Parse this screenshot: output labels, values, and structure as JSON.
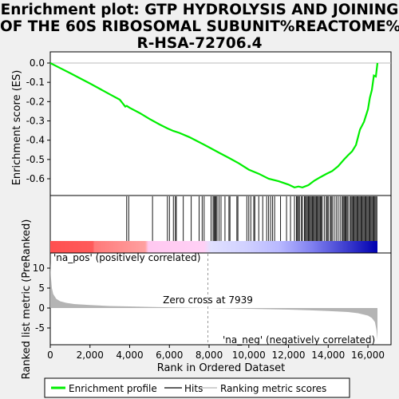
{
  "title": {
    "line1": "Enrichment plot: GTP HYDROLYSIS AND JOINING",
    "line2": "OF THE 60S RIBOSOMAL SUBUNIT%REACTOME%",
    "line3": "R-HSA-72706.4"
  },
  "colors": {
    "curve": "#00ee00",
    "hits": "#000000",
    "metric_fill": "#b4b4b4",
    "pos_label": "#ff0000",
    "neg_label": "#0000cd"
  },
  "chart_data": [
    {
      "type": "line",
      "name": "enrichment-score-panel",
      "ylabel": "Enrichment score (ES)",
      "ylim": [
        -0.69,
        0.04
      ],
      "xlim": [
        0,
        17000
      ],
      "yticks": [
        "0.0",
        "-0.1",
        "-0.2",
        "-0.3",
        "-0.4",
        "-0.5",
        "-0.6"
      ],
      "ytick_values": [
        0.0,
        -0.1,
        -0.2,
        -0.3,
        -0.4,
        -0.5,
        -0.6
      ],
      "grid": false,
      "x": [
        0,
        500,
        1000,
        1500,
        2000,
        2500,
        3000,
        3500,
        3780,
        3850,
        4000,
        4500,
        5000,
        5500,
        5900,
        6200,
        6500,
        7000,
        7500,
        8000,
        8500,
        9000,
        9500,
        10000,
        10500,
        11000,
        11500,
        12000,
        12300,
        12500,
        12700,
        13000,
        13300,
        13600,
        13900,
        14200,
        14500,
        14800,
        15000,
        15200,
        15400,
        15600,
        15800,
        16000,
        16100,
        16200,
        16300,
        16400,
        16480
      ],
      "y": [
        0.0,
        -0.026,
        -0.052,
        -0.079,
        -0.106,
        -0.134,
        -0.162,
        -0.19,
        -0.226,
        -0.222,
        -0.232,
        -0.259,
        -0.29,
        -0.318,
        -0.339,
        -0.352,
        -0.362,
        -0.384,
        -0.41,
        -0.437,
        -0.465,
        -0.492,
        -0.52,
        -0.553,
        -0.574,
        -0.6,
        -0.613,
        -0.63,
        -0.645,
        -0.64,
        -0.645,
        -0.633,
        -0.61,
        -0.592,
        -0.575,
        -0.56,
        -0.535,
        -0.5,
        -0.478,
        -0.458,
        -0.425,
        -0.345,
        -0.305,
        -0.24,
        -0.18,
        -0.14,
        -0.065,
        -0.07,
        0.0
      ]
    },
    {
      "type": "scatter",
      "name": "hits-panel",
      "xlim": [
        0,
        17000
      ],
      "x": [
        3850,
        3950,
        5150,
        5900,
        6000,
        6200,
        6300,
        6350,
        6700,
        7100,
        7500,
        7650,
        7750,
        8100,
        8200,
        8250,
        8300,
        8350,
        8400,
        8500,
        8600,
        8800,
        9000,
        9050,
        9400,
        9450,
        9900,
        10000,
        10100,
        10250,
        10300,
        10500,
        10700,
        10900,
        11000,
        11100,
        11200,
        11300,
        11600,
        11900,
        12100,
        12300,
        12400,
        12450,
        12500,
        12550,
        12650,
        12700,
        12800,
        12850,
        12900,
        12950,
        13000,
        13050,
        13100,
        13150,
        13200,
        13250,
        13300,
        13350,
        13400,
        13450,
        13500,
        13550,
        13600,
        13650,
        13700,
        13800,
        13900,
        13950,
        14000,
        14100,
        14150,
        14200,
        14300,
        14400,
        14500,
        14600,
        14700,
        14750,
        14800,
        14850,
        14900,
        14950,
        15000,
        15100,
        15150,
        15200,
        15250,
        15300,
        15350,
        15400,
        15450,
        15500,
        15550,
        15600,
        15650,
        15700,
        15750,
        15800,
        15850,
        15900,
        15950,
        16000,
        16050,
        16100,
        16150,
        16200,
        16250,
        16300,
        16350,
        16400,
        16450
      ]
    },
    {
      "type": "area",
      "name": "ranked-list-metric-panel",
      "ylabel": "Ranked list metric (PreRanked)",
      "xlabel": "Rank in Ordered Dataset",
      "ylim": [
        -9,
        12
      ],
      "xlim": [
        0,
        17000
      ],
      "yticks": [
        "10",
        "5",
        "0",
        "-5"
      ],
      "ytick_values": [
        10,
        5,
        0,
        -5
      ],
      "xticks": [
        "0",
        "2,000",
        "4,000",
        "6,000",
        "8,000",
        "10,000",
        "12,000",
        "14,000",
        "16,000"
      ],
      "xtick_values": [
        0,
        2000,
        4000,
        6000,
        8000,
        10000,
        12000,
        14000,
        16000
      ],
      "x": [
        0,
        30,
        80,
        150,
        300,
        500,
        800,
        1200,
        2000,
        3000,
        4000,
        5000,
        6000,
        7000,
        7939,
        9000,
        10000,
        11000,
        12000,
        13000,
        14000,
        15000,
        15500,
        16000,
        16200,
        16350,
        16430,
        16480
      ],
      "y": [
        11.5,
        8.0,
        5.0,
        3.5,
        2.3,
        1.7,
        1.3,
        1.0,
        0.75,
        0.5,
        0.4,
        0.28,
        0.18,
        0.08,
        0.0,
        -0.1,
        -0.2,
        -0.3,
        -0.4,
        -0.55,
        -0.75,
        -1.0,
        -1.3,
        -1.9,
        -2.5,
        -3.5,
        -5.5,
        -8.0
      ],
      "zero_cross": 7939,
      "zero_cross_label": "Zero cross at 7939",
      "pos_label": "'na_pos' (positively correlated)",
      "neg_label": "'na_neg' (negatively correlated)"
    }
  ],
  "legend": {
    "items": [
      {
        "label": "Enrichment profile",
        "color": "#00ee00"
      },
      {
        "label": "Hits",
        "color": "#000000"
      },
      {
        "label": "Ranking metric scores",
        "color": "#b4b4b4"
      }
    ]
  }
}
